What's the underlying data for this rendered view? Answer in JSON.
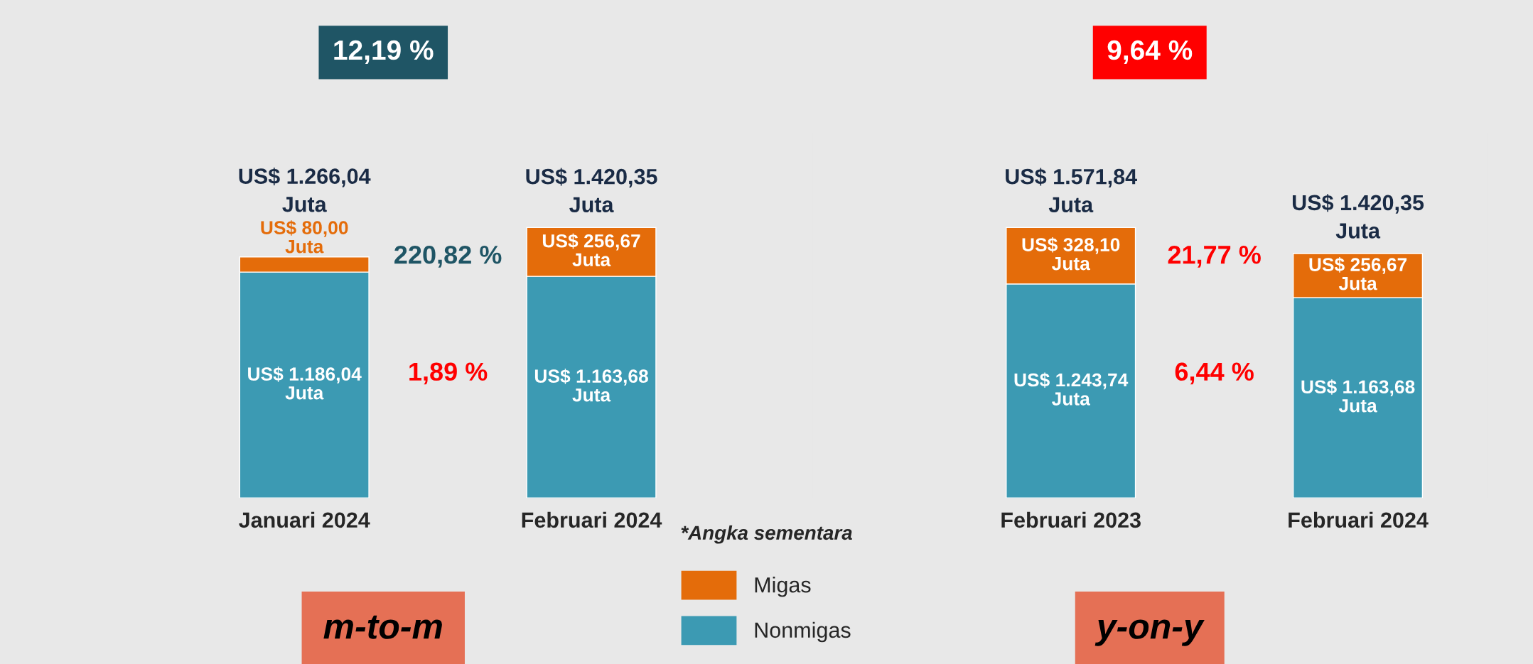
{
  "chart_data": [
    {
      "type": "bar",
      "stacked": true,
      "categories": [
        "Januari 2024",
        "Februari 2024"
      ],
      "series": [
        {
          "name": "Nonmigas",
          "color": "#3c9ab3",
          "values": [
            1186.04,
            1163.68
          ],
          "value_labels": [
            "US$ 1.186,04\nJuta",
            "US$ 1.163,68\nJuta"
          ]
        },
        {
          "name": "Migas",
          "color": "#e46c0a",
          "values": [
            80.0,
            256.67
          ],
          "value_labels": [
            "US$ 80,00\nJuta",
            "US$ 256,67\nJuta"
          ]
        }
      ],
      "totals": [
        "US$ 1.266,04\nJuta",
        "US$ 1.420,35\nJuta"
      ],
      "annotations": [
        "12,19 %",
        "220,82 %",
        "1,89 %",
        "m-to-m",
        "*Angka sementara"
      ],
      "legend": "bottom"
    },
    {
      "type": "bar",
      "stacked": true,
      "categories": [
        "Februari 2023",
        "Februari 2024"
      ],
      "series": [
        {
          "color": "#3c9ab3",
          "values": [
            1243.74,
            1163.68
          ],
          "value_labels": [
            "US$ 1.243,74\nJuta",
            "US$ 1.163,68\nJuta"
          ]
        },
        {
          "color": "#e46c0a",
          "values": [
            328.1,
            256.67
          ],
          "value_labels": [
            "US$ 328,10\nJuta",
            "US$ 256,67\nJuta"
          ]
        }
      ],
      "totals": [
        "US$ 1.571,84\nJuta",
        "US$ 1.420,35\nJuta"
      ],
      "annotations": [
        "9,64 %",
        "21,77 %",
        "6,44 %",
        "y-on-y"
      ]
    }
  ]
}
